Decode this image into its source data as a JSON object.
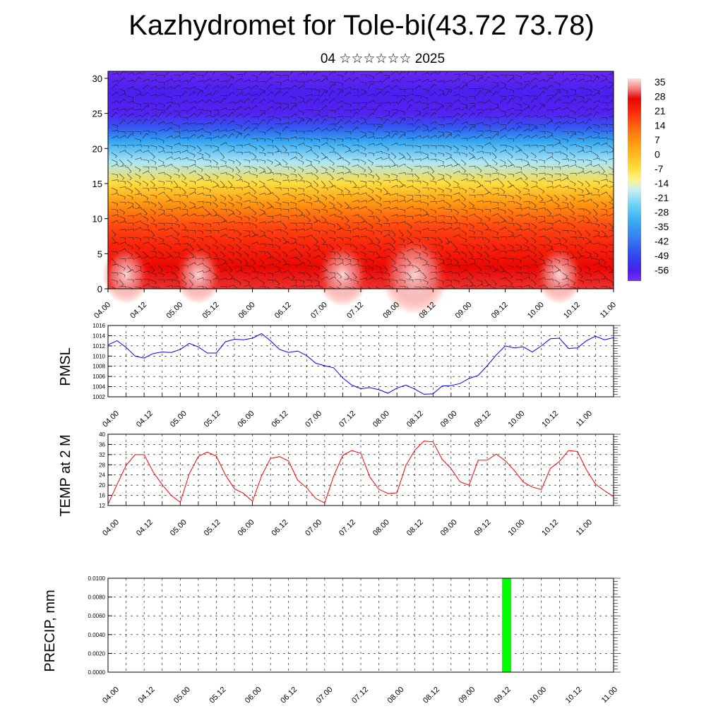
{
  "title": "Kazhydromet for Tole-bi(43.72 73.78)",
  "subtitle": "04 ☆☆☆☆☆☆ 2025",
  "colors": {
    "pmsl_line": "#0000ff",
    "temp_line": "#ff0000",
    "precip_bar": "#00ff00",
    "axis": "#000000"
  },
  "chart_data": [
    {
      "type": "heatmap",
      "title": "",
      "x_tick_labels": [
        "04.00",
        "04.12",
        "05.00",
        "05.12",
        "06.00",
        "06.12",
        "07.00",
        "07.12",
        "08.00",
        "08.12",
        "09.00",
        "09.12",
        "10.00",
        "10.12",
        "11.00"
      ],
      "y_ticks": [
        0,
        5,
        10,
        15,
        20,
        25,
        30
      ],
      "ylim": [
        0,
        31
      ],
      "overlay": "wind barbs",
      "colorbar": {
        "labels": [
          "35",
          "28",
          "21",
          "14",
          "7",
          "0",
          "-7",
          "-14",
          "-21",
          "-28",
          "-35",
          "-42",
          "-49",
          "-56"
        ],
        "range": [
          -60,
          38
        ]
      },
      "temperature_profile": [
        {
          "level": 0,
          "value": 30
        },
        {
          "level": 3,
          "value": 27
        },
        {
          "level": 6,
          "value": 23
        },
        {
          "level": 9,
          "value": 18
        },
        {
          "level": 12,
          "value": 8
        },
        {
          "level": 15,
          "value": -5
        },
        {
          "level": 18,
          "value": -18
        },
        {
          "level": 21,
          "value": -32
        },
        {
          "level": 23,
          "value": -45
        },
        {
          "level": 25,
          "value": -56
        },
        {
          "level": 28,
          "value": -55
        },
        {
          "level": 31,
          "value": -58
        }
      ],
      "warm_cores": [
        {
          "x": "04.06",
          "value": 33
        },
        {
          "x": "05.06",
          "value": 33
        },
        {
          "x": "07.06",
          "value": 34
        },
        {
          "x": "08.06",
          "value": 37
        },
        {
          "x": "10.06",
          "value": 33
        }
      ]
    },
    {
      "type": "line",
      "ylabel": "PMSL",
      "ylim": [
        1002,
        1016
      ],
      "y_ticks": [
        1002,
        1004,
        1006,
        1008,
        1010,
        1012,
        1014,
        1016
      ],
      "x_tick_labels": [
        "04.00",
        "04.12",
        "05.00",
        "05.12",
        "06.00",
        "06.12",
        "07.00",
        "07.12",
        "08.00",
        "08.12",
        "09.00",
        "09.12",
        "10.00",
        "10.12",
        "11.00"
      ],
      "x_step_hours": 3,
      "values": [
        1012.2,
        1013.0,
        1011.7,
        1010.0,
        1009.6,
        1010.5,
        1010.8,
        1010.7,
        1011.3,
        1012.5,
        1011.8,
        1010.6,
        1010.6,
        1012.8,
        1013.3,
        1013.2,
        1013.5,
        1014.4,
        1013.0,
        1011.3,
        1010.7,
        1011.0,
        1010.1,
        1008.6,
        1008.1,
        1007.7,
        1005.7,
        1004.3,
        1003.6,
        1003.8,
        1003.4,
        1002.7,
        1003.7,
        1004.3,
        1003.5,
        1002.5,
        1002.6,
        1004.1,
        1004.2,
        1004.6,
        1005.6,
        1006.2,
        1008.1,
        1010.2,
        1012.0,
        1011.6,
        1011.8,
        1010.8,
        1012.0,
        1013.4,
        1013.5,
        1011.5,
        1011.6,
        1013.0,
        1013.9,
        1013.2,
        1013.6
      ]
    },
    {
      "type": "line",
      "ylabel": "TEMP at 2 M",
      "ylim": [
        12,
        40
      ],
      "y_ticks": [
        12,
        16,
        20,
        24,
        28,
        32,
        36,
        40
      ],
      "x_tick_labels": [
        "04.00",
        "04.12",
        "05.00",
        "05.12",
        "06.00",
        "06.12",
        "07.00",
        "07.12",
        "08.00",
        "08.12",
        "09.00",
        "09.12",
        "10.00",
        "10.12",
        "11.00"
      ],
      "x_step_hours": 3,
      "values": [
        12.5,
        20.3,
        27.8,
        32.0,
        32.0,
        25.2,
        20.2,
        16.0,
        13.3,
        24.5,
        31.3,
        33.0,
        31.4,
        24.0,
        18.6,
        16.8,
        13.7,
        23.6,
        30.5,
        31.2,
        29.5,
        22.0,
        19.0,
        14.8,
        13.0,
        23.6,
        31.7,
        33.6,
        32.5,
        23.2,
        18.4,
        16.7,
        17.0,
        27.8,
        33.8,
        37.3,
        37.0,
        30.2,
        26.5,
        21.3,
        20.0,
        29.8,
        29.8,
        32.2,
        29.6,
        25.8,
        21.2,
        19.3,
        18.3,
        26.6,
        29.3,
        33.6,
        33.2,
        26.0,
        20.4,
        17.8,
        15.5
      ]
    },
    {
      "type": "bar",
      "ylabel": "PRECIP, mm",
      "ylim": [
        0,
        0.01
      ],
      "y_tick_labels": [
        "0.0000",
        "0.0020",
        "0.0040",
        "0.0060",
        "0.0080",
        "0.0100"
      ],
      "x_tick_labels": [
        "04.00",
        "04.12",
        "05.00",
        "05.12",
        "06.00",
        "06.12",
        "07.00",
        "07.12",
        "08.00",
        "08.12",
        "09.00",
        "09.12",
        "10.00",
        "10.12",
        "11.00"
      ],
      "bars": [
        {
          "x": "09.12",
          "value": 0.01
        }
      ]
    }
  ]
}
